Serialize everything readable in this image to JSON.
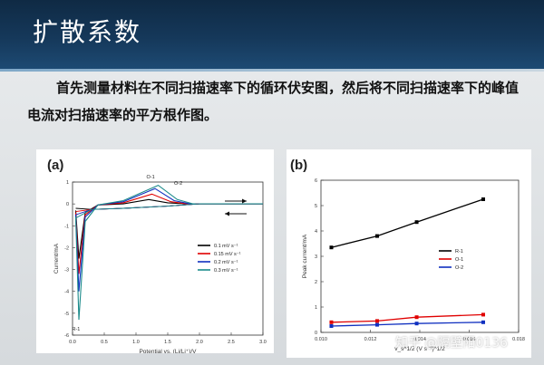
{
  "header": {
    "title": "扩散系数"
  },
  "paragraph": "首先测量材料在不同扫描速率下的循环伏安图，然后将不同扫描速率下的峰值电流对扫描速率的平方根作图。",
  "chart_data": [
    {
      "type": "line",
      "panel_label": "(a)",
      "xlabel": "Potential vs. (Li/Li⁺)/V",
      "ylabel": "Current/mA",
      "xlim": [
        0.0,
        3.0
      ],
      "ylim": [
        -6,
        1
      ],
      "x_ticks": [
        "0.0",
        "0.5",
        "1.0",
        "1.5",
        "2.0",
        "2.5",
        "3.0"
      ],
      "y_ticks": [
        "1",
        "0",
        "-1",
        "-2",
        "-3",
        "-4",
        "-5",
        "-6"
      ],
      "annotations": [
        "O-1",
        "O-2",
        "R-1"
      ],
      "legend_position": "center-right",
      "series": [
        {
          "name": "0.1 mV s⁻¹",
          "color": "#000000",
          "x": [
            0.05,
            0.1,
            0.2,
            0.4,
            0.8,
            1.2,
            1.5,
            1.8,
            2.2,
            3.0
          ],
          "y": [
            -0.3,
            -2.5,
            -0.4,
            -0.05,
            0.0,
            0.2,
            0.05,
            0.0,
            0.0,
            0.0
          ]
        },
        {
          "name": "0.15 mV s⁻¹",
          "color": "#e00000",
          "x": [
            0.05,
            0.1,
            0.2,
            0.4,
            0.8,
            1.25,
            1.55,
            1.8,
            2.2,
            3.0
          ],
          "y": [
            -0.4,
            -3.2,
            -0.5,
            -0.05,
            0.05,
            0.45,
            0.1,
            0.0,
            0.0,
            0.0
          ]
        },
        {
          "name": "0.2 mV s⁻¹",
          "color": "#1030c0",
          "x": [
            0.05,
            0.1,
            0.2,
            0.4,
            0.8,
            1.3,
            1.6,
            1.85,
            2.2,
            3.0
          ],
          "y": [
            -0.5,
            -4.0,
            -0.6,
            -0.05,
            0.1,
            0.7,
            0.15,
            0.0,
            0.0,
            0.0
          ]
        },
        {
          "name": "0.3 mV s⁻¹",
          "color": "#1b8a8a",
          "x": [
            0.05,
            0.1,
            0.2,
            0.4,
            0.8,
            1.35,
            1.65,
            1.9,
            2.2,
            3.0
          ],
          "y": [
            -0.6,
            -5.3,
            -0.8,
            -0.05,
            0.15,
            0.85,
            0.2,
            0.0,
            0.0,
            0.0
          ]
        }
      ]
    },
    {
      "type": "scatter",
      "panel_label": "(b)",
      "xlabel": "v_s^1/2 (V s⁻¹)^1/2",
      "ylabel": "Peak current/mA",
      "xlim": [
        0.0095,
        0.019
      ],
      "ylim": [
        0,
        6
      ],
      "x_ticks": [
        "0.010",
        "0.012",
        "0.014",
        "0.016",
        "0.018"
      ],
      "y_ticks": [
        "0",
        "1",
        "2",
        "3",
        "4",
        "5",
        "6"
      ],
      "legend_position": "center-left",
      "series": [
        {
          "name": "R-1",
          "color": "#000000",
          "x": [
            0.01,
            0.0122,
            0.0141,
            0.0173
          ],
          "y": [
            3.35,
            3.8,
            4.35,
            5.25
          ]
        },
        {
          "name": "O-1",
          "color": "#e00000",
          "x": [
            0.01,
            0.0122,
            0.0141,
            0.0173
          ],
          "y": [
            0.4,
            0.45,
            0.6,
            0.7
          ]
        },
        {
          "name": "O-2",
          "color": "#1030c0",
          "x": [
            0.01,
            0.0122,
            0.0141,
            0.0173
          ],
          "y": [
            0.25,
            0.3,
            0.35,
            0.4
          ]
        }
      ]
    }
  ],
  "watermark": "知乎 @隔壁阳0136"
}
